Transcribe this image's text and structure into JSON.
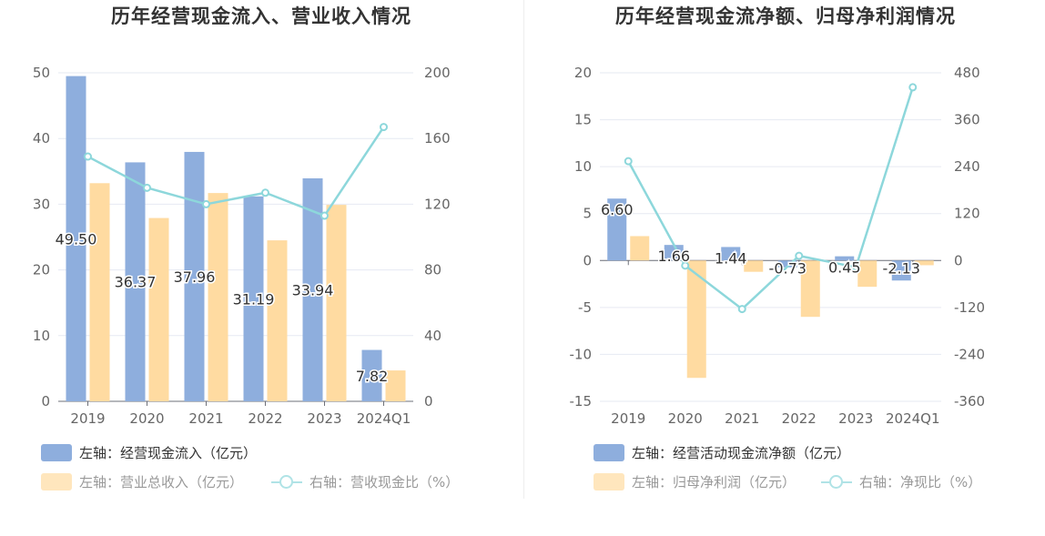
{
  "chart_data": [
    {
      "type": "bar",
      "title": "历年经营现金流入、营业收入情况",
      "categories": [
        "2019",
        "2020",
        "2021",
        "2022",
        "2023",
        "2024Q1"
      ],
      "ylim_left": [
        0,
        50
      ],
      "yticks_left": [
        0,
        10,
        20,
        30,
        40,
        50
      ],
      "ylim_right": [
        0,
        200
      ],
      "yticks_right": [
        0,
        40,
        80,
        120,
        160,
        200
      ],
      "series": [
        {
          "name": "左轴：经营现金流入（亿元）",
          "axis": "left",
          "kind": "bar",
          "color": "#8eaedd",
          "values": [
            49.5,
            36.37,
            37.96,
            31.19,
            33.94,
            7.82
          ],
          "labels": [
            "49.50",
            "36.37",
            "37.96",
            "31.19",
            "33.94",
            "7.82"
          ]
        },
        {
          "name": "左轴：营业总收入（亿元）",
          "axis": "left",
          "kind": "bar",
          "color": "#ffdba1",
          "values": [
            33.2,
            27.9,
            31.7,
            24.5,
            29.9,
            4.7
          ]
        },
        {
          "name": "右轴：营收现金比（%）",
          "axis": "right",
          "kind": "line",
          "color": "#8dd7db",
          "values": [
            149,
            130,
            120,
            127,
            113,
            167
          ]
        }
      ],
      "grid": true
    },
    {
      "type": "bar",
      "title": "历年经营现金流净额、归母净利润情况",
      "categories": [
        "2019",
        "2020",
        "2021",
        "2022",
        "2023",
        "2024Q1"
      ],
      "ylim_left": [
        -15,
        20
      ],
      "yticks_left": [
        -15,
        -10,
        -5,
        0,
        5,
        10,
        15,
        20
      ],
      "ylim_right": [
        -360,
        480
      ],
      "yticks_right": [
        -360,
        -240,
        -120,
        0,
        120,
        240,
        360,
        480
      ],
      "series": [
        {
          "name": "左轴：经营活动现金流净额（亿元）",
          "axis": "left",
          "kind": "bar",
          "color": "#8eaedd",
          "values": [
            6.6,
            1.66,
            1.44,
            -0.73,
            0.45,
            -2.13
          ],
          "labels": [
            "6.60",
            "1.66",
            "1.44",
            "-0.73",
            "0.45",
            "-2.13"
          ]
        },
        {
          "name": "左轴：归母净利润（亿元）",
          "axis": "left",
          "kind": "bar",
          "color": "#ffdba1",
          "values": [
            2.6,
            -12.5,
            -1.2,
            -6.0,
            -2.8,
            -0.5
          ]
        },
        {
          "name": "右轴：净现比（%）",
          "axis": "right",
          "kind": "line",
          "color": "#8dd7db",
          "values": [
            254,
            -13,
            -124,
            12,
            -17,
            443
          ]
        }
      ],
      "grid": true
    }
  ]
}
